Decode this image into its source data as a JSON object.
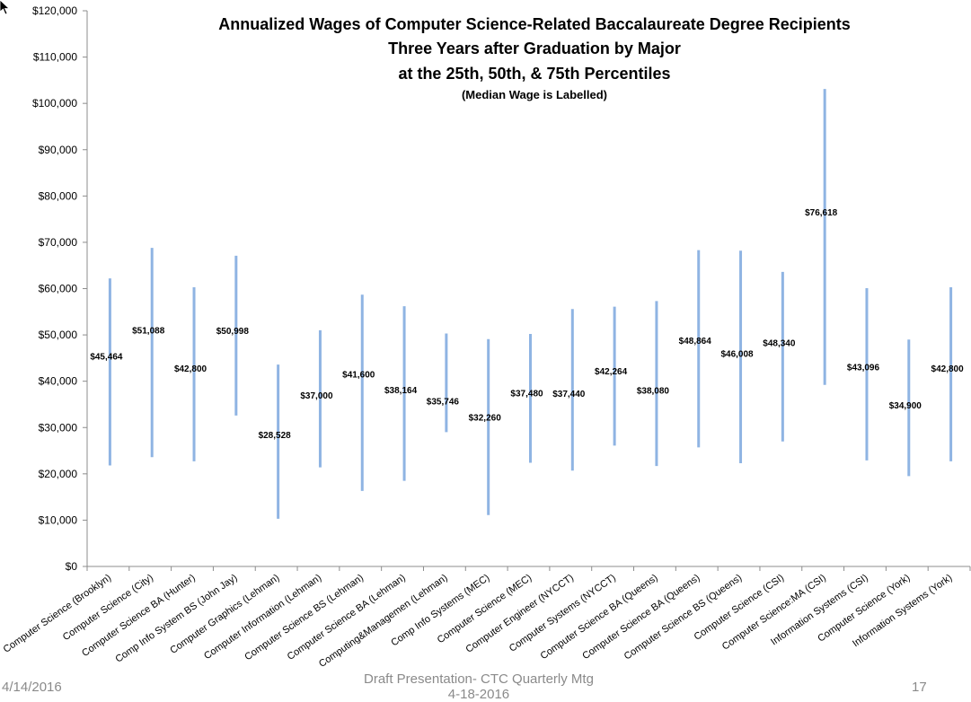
{
  "chart_data": {
    "type": "range-bar",
    "title": [
      "Annualized Wages of Computer Science-Related Baccalaureate Degree Recipients",
      "Three Years after Graduation by Major",
      "at the 25th, 50th, & 75th Percentiles"
    ],
    "subtitle": "(Median Wage is Labelled)",
    "ylim": [
      0,
      120000
    ],
    "y_ticks": [
      "$0",
      "$10,000",
      "$20,000",
      "$30,000",
      "$40,000",
      "$50,000",
      "$60,000",
      "$70,000",
      "$80,000",
      "$90,000",
      "$100,000",
      "$110,000",
      "$120,000"
    ],
    "grid": false,
    "categories": [
      "Computer Science (Brooklyn)",
      "Computer Science (City)",
      "Computer Science BA (Hunter)",
      "Comp Info System BS (John Jay)",
      "Computer Graphics (Lehman)",
      "Computer Information (Lehman)",
      "Computer Science BS (Lehman)",
      "Computer Science BA (Lehman)",
      "Computing&Managemen (Lehman)",
      "Comp Info Systems (MEC)",
      "Computer Science (MEC)",
      "Computer Engineer (NYCCT)",
      "Computer Systems (NYCCT)",
      "Computer Science BA (Queens)",
      "Computer Science BA (Queens)",
      "Computer Science BS (Queens)",
      "Computer Science (CSI)",
      "Computer Science:MA (CSI)",
      "Information Systems (CSI)",
      "Computer Science (York)",
      "Information Systems (York)"
    ],
    "p25": [
      21800,
      23600,
      22700,
      32600,
      10300,
      21400,
      16300,
      18500,
      29000,
      11100,
      22400,
      20700,
      26100,
      21700,
      25700,
      22300,
      27000,
      39200,
      22900,
      19500,
      22700
    ],
    "p75": [
      62200,
      68800,
      60300,
      67100,
      43600,
      51000,
      58700,
      56200,
      50300,
      49100,
      50200,
      55600,
      56100,
      57300,
      68300,
      68200,
      63600,
      103100,
      60100,
      49000,
      60300
    ],
    "median": [
      45464,
      51088,
      42800,
      50998,
      28528,
      37000,
      41600,
      38164,
      35746,
      32260,
      37480,
      37440,
      42264,
      38080,
      48864,
      46008,
      48340,
      76618,
      43096,
      34900,
      42800
    ],
    "median_labels": [
      "$45,464",
      "$51,088",
      "$42,800",
      "$50,998",
      "$28,528",
      "$37,000",
      "$41,600",
      "$38,164",
      "$35,746",
      "$32,260",
      "$37,480",
      "$37,440",
      "$42,264",
      "$38,080",
      "$48,864",
      "$46,008",
      "$48,340",
      "$76,618",
      "$43,096",
      "$34,900",
      "$42,800"
    ],
    "bar_color": "#8fb4e3",
    "axis_color": "#8c8c8c"
  },
  "footer": {
    "date": "4/14/2016",
    "center": "Draft Presentation- CTC Quarterly Mtg\n4-18-2016",
    "page": "17"
  },
  "cursor": "pointer-arrow-icon"
}
